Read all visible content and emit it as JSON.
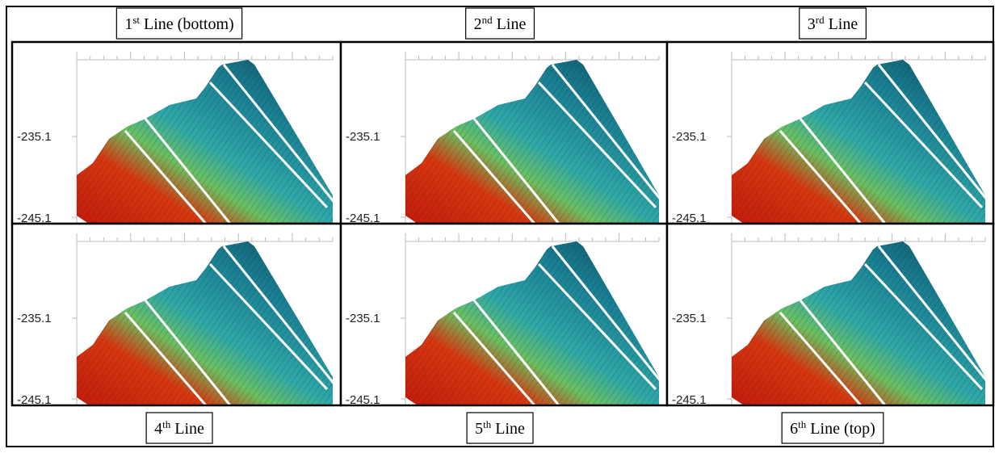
{
  "panels": [
    {
      "label": {
        "number": "1",
        "suffix": "st",
        "text": "Line (bottom)"
      },
      "y_labels": [
        "-235.1",
        "-245.1"
      ]
    },
    {
      "label": {
        "number": "2",
        "suffix": "nd",
        "text": "Line"
      },
      "y_labels": [
        "-235.1",
        "-245.1"
      ]
    },
    {
      "label": {
        "number": "3",
        "suffix": "rd",
        "text": "Line"
      },
      "y_labels": [
        "-235.1",
        "-245.1"
      ]
    },
    {
      "label": {
        "number": "4",
        "suffix": "th",
        "text": "Line"
      },
      "y_labels": [
        "-235.1",
        "-245.1"
      ]
    },
    {
      "label": {
        "number": "5",
        "suffix": "th",
        "text": "Line"
      },
      "y_labels": [
        "-235.1",
        "-245.1"
      ]
    },
    {
      "label": {
        "number": "6",
        "suffix": "th",
        "text": "Line (top)"
      },
      "y_labels": [
        "-235.1",
        "-245.1"
      ]
    }
  ]
}
